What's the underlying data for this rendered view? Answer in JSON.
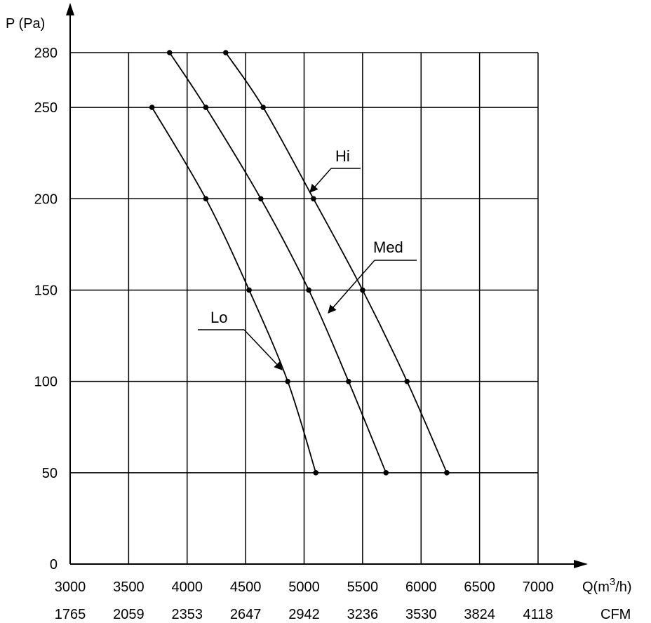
{
  "chart_data": {
    "type": "line",
    "title": "",
    "ylabel": "P (Pa)",
    "xlabel": "Q(m3/h)",
    "xlabel_secondary": "CFM",
    "grid": true,
    "xlim": [
      3000,
      7000
    ],
    "ylim": [
      0,
      280
    ],
    "x_ticks": [
      3000,
      3500,
      4000,
      4500,
      5000,
      5500,
      6000,
      6500,
      7000
    ],
    "x_tick_labels": [
      "3000",
      "3500",
      "4000",
      "4500",
      "5000",
      "5500",
      "6000",
      "6500",
      "7000"
    ],
    "x_tick_labels_cfm": [
      "1765",
      "2059",
      "2353",
      "2647",
      "2942",
      "3236",
      "3530",
      "3824",
      "4118"
    ],
    "y_ticks": [
      0,
      50,
      100,
      150,
      200,
      250,
      280
    ],
    "y_tick_labels": [
      "0",
      "50",
      "100",
      "150",
      "200",
      "250",
      "280"
    ],
    "series": [
      {
        "name": "Hi",
        "points": [
          [
            4330,
            280
          ],
          [
            4650,
            250
          ],
          [
            5080,
            200
          ],
          [
            5500,
            150
          ],
          [
            5880,
            100
          ],
          [
            6220,
            50
          ]
        ]
      },
      {
        "name": "Med",
        "points": [
          [
            3850,
            280
          ],
          [
            4160,
            250
          ],
          [
            4630,
            200
          ],
          [
            5040,
            150
          ],
          [
            5380,
            100
          ],
          [
            5700,
            50
          ]
        ]
      },
      {
        "name": "Lo",
        "points": [
          [
            3700,
            250
          ],
          [
            4160,
            200
          ],
          [
            4530,
            150
          ],
          [
            4860,
            100
          ],
          [
            5100,
            50
          ]
        ]
      }
    ]
  }
}
